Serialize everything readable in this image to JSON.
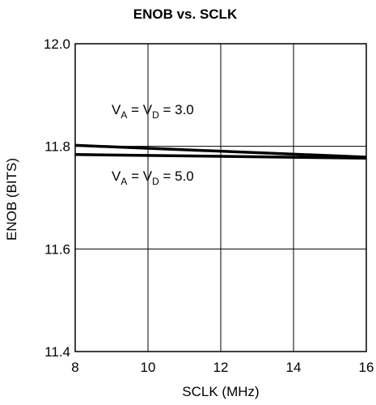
{
  "chart_data": {
    "type": "line",
    "title": "ENOB vs. SCLK",
    "xlabel": "SCLK (MHz)",
    "ylabel": "ENOB (BITS)",
    "xlim": [
      8,
      16
    ],
    "ylim": [
      11.4,
      12.0
    ],
    "x_ticks": [
      "8",
      "10",
      "12",
      "14",
      "16"
    ],
    "y_ticks": [
      "12.0",
      "11.8",
      "11.6",
      "11.4"
    ],
    "grid": true,
    "series": [
      {
        "x": [
          8,
          16
        ],
        "y": [
          11.802,
          11.779
        ]
      },
      {
        "x": [
          8,
          16
        ],
        "y": [
          11.784,
          11.777
        ]
      }
    ],
    "annotations": [
      {
        "pre": "V",
        "sub1": "A",
        "mid": " = V",
        "sub2": "D",
        "post": " = 3.0",
        "anchor_x": 9.0,
        "anchor_y": 11.863
      },
      {
        "pre": "V",
        "sub1": "A",
        "mid": " = V",
        "sub2": "D",
        "post": " = 5.0",
        "anchor_x": 9.0,
        "anchor_y": 11.733
      }
    ],
    "line_color": "#000000"
  }
}
